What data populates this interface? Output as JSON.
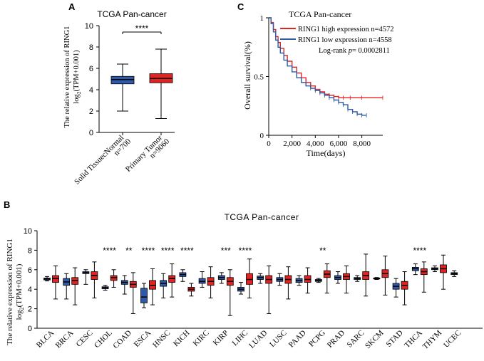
{
  "colors": {
    "normal": "#2e5aa8",
    "tumor": "#e02424",
    "high_line": "#e02424",
    "low_line": "#2e5aa8",
    "axis": "#000000"
  },
  "panels": {
    "a": {
      "letter": "A"
    },
    "b": {
      "letter": "B"
    },
    "c": {
      "letter": "C"
    }
  },
  "chart_data": [
    {
      "type": "box",
      "panel": "A",
      "title": "TCGA Pan-cancer",
      "ylabel_line1": "The relative expression of RING1",
      "ylabel_line2": "log",
      "ylabel_sub": "2",
      "ylabel_line2_rest": "(TPM+0.001)",
      "ylim": [
        0,
        10
      ],
      "yticks": [
        0,
        2,
        4,
        6,
        8,
        10
      ],
      "significance": "****",
      "groups": [
        {
          "name": "Solid TissuecNormal",
          "n": "n=700",
          "color": "normal",
          "min": 2.0,
          "q1": 4.55,
          "median": 4.95,
          "q3": 5.25,
          "max": 6.4
        },
        {
          "name": "Primary Tumor",
          "n": "n=9060",
          "color": "tumor",
          "min": 1.3,
          "q1": 4.65,
          "median": 5.05,
          "q3": 5.5,
          "max": 7.8
        }
      ]
    },
    {
      "type": "line",
      "panel": "C",
      "title": "TCGA Pan-cancer",
      "xlabel": "Time(days)",
      "ylabel": "Overall survival(%)",
      "xlim": [
        0,
        9800
      ],
      "ylim": [
        0,
        1
      ],
      "xticks": [
        0,
        2000,
        4000,
        6000,
        8000
      ],
      "xtick_labels": [
        "0",
        "2,000",
        "4,000",
        "6,000",
        "8,000"
      ],
      "yticks": [
        0,
        0.5,
        1
      ],
      "ytick_labels": [
        "0",
        "0.5",
        "1"
      ],
      "legend": "top-right",
      "logrank_label": "Log-rank",
      "logrank_p": "p",
      "logrank_value": "= 0.0002811",
      "series": [
        {
          "name": "RING1 high expression n=4572",
          "color": "high_line",
          "x": [
            0,
            200,
            400,
            600,
            800,
            1000,
            1300,
            1600,
            2000,
            2400,
            2800,
            3200,
            3600,
            4000,
            4400,
            4800,
            5200,
            5600,
            6000,
            6400,
            7000,
            8000,
            9800
          ],
          "y": [
            1.0,
            0.96,
            0.9,
            0.84,
            0.79,
            0.74,
            0.68,
            0.63,
            0.58,
            0.53,
            0.49,
            0.45,
            0.42,
            0.39,
            0.37,
            0.35,
            0.34,
            0.33,
            0.32,
            0.32,
            0.32,
            0.32,
            0.32
          ]
        },
        {
          "name": "RING1 low expression n=4558",
          "color": "low_line",
          "x": [
            0,
            200,
            400,
            600,
            800,
            1000,
            1300,
            1600,
            2000,
            2400,
            2800,
            3200,
            3600,
            4000,
            4400,
            4800,
            5200,
            5600,
            6000,
            6400,
            6800,
            7200,
            7600,
            8000,
            8400
          ],
          "y": [
            1.0,
            0.95,
            0.88,
            0.81,
            0.75,
            0.7,
            0.64,
            0.59,
            0.54,
            0.49,
            0.45,
            0.42,
            0.4,
            0.38,
            0.36,
            0.34,
            0.32,
            0.3,
            0.28,
            0.26,
            0.22,
            0.2,
            0.18,
            0.17,
            0.17
          ]
        }
      ]
    },
    {
      "type": "box",
      "panel": "B",
      "title": "TCGA Pan-cancer",
      "ylabel_line1": "The relative expression of RING1",
      "ylabel_line2": "log",
      "ylabel_sub": "2",
      "ylabel_line2_rest": "(TPM+0.001)",
      "ylim": [
        0,
        10
      ],
      "yticks": [
        0,
        2,
        4,
        6,
        8,
        10
      ],
      "categories": [
        {
          "name": "BLCA",
          "sig": "",
          "normal": [
            4.85,
            4.95,
            5.05,
            5.15,
            5.3
          ],
          "tumor": [
            3.0,
            4.7,
            5.1,
            5.4,
            6.4
          ]
        },
        {
          "name": "BRCA",
          "sig": "",
          "normal": [
            3.0,
            4.4,
            4.75,
            5.1,
            5.6
          ],
          "tumor": [
            2.4,
            4.5,
            4.9,
            5.2,
            6.2
          ]
        },
        {
          "name": "CESC",
          "sig": "",
          "normal": [
            4.5,
            5.6,
            5.7,
            5.8,
            6.0
          ],
          "tumor": [
            3.1,
            5.0,
            5.4,
            5.8,
            6.8
          ]
        },
        {
          "name": "CHOL",
          "sig": "****",
          "normal": [
            3.9,
            4.05,
            4.15,
            4.25,
            4.4
          ],
          "tumor": [
            4.2,
            4.9,
            5.2,
            5.4,
            6.0
          ]
        },
        {
          "name": "COAD",
          "sig": "**",
          "normal": [
            3.5,
            4.5,
            4.7,
            4.9,
            5.4
          ],
          "tumor": [
            1.5,
            4.2,
            4.5,
            4.8,
            5.7
          ]
        },
        {
          "name": "ESCA",
          "sig": "****",
          "normal": [
            2.1,
            2.6,
            3.2,
            4.1,
            4.6
          ],
          "tumor": [
            2.4,
            4.0,
            4.4,
            4.9,
            6.1
          ]
        },
        {
          "name": "HNSC",
          "sig": "****",
          "normal": [
            3.1,
            4.3,
            4.6,
            4.9,
            5.6
          ],
          "tumor": [
            3.2,
            4.7,
            5.1,
            5.4,
            6.6
          ]
        },
        {
          "name": "KICH",
          "sig": "****",
          "normal": [
            4.8,
            5.3,
            5.5,
            5.7,
            6.0
          ],
          "tumor": [
            3.3,
            3.8,
            4.0,
            4.2,
            4.6
          ]
        },
        {
          "name": "KIRC",
          "sig": "",
          "normal": [
            4.2,
            4.6,
            4.8,
            5.1,
            5.8
          ],
          "tumor": [
            3.1,
            4.4,
            4.8,
            5.2,
            6.3
          ]
        },
        {
          "name": "KIRP",
          "sig": "***",
          "normal": [
            4.6,
            5.0,
            5.2,
            5.4,
            5.7
          ],
          "tumor": [
            1.3,
            4.4,
            4.8,
            5.2,
            6.0
          ]
        },
        {
          "name": "LIHC",
          "sig": "****",
          "normal": [
            3.5,
            3.8,
            4.0,
            4.2,
            4.7
          ],
          "tumor": [
            3.1,
            4.5,
            5.0,
            5.6,
            7.1
          ]
        },
        {
          "name": "LUAD",
          "sig": "",
          "normal": [
            4.6,
            5.0,
            5.2,
            5.35,
            5.6
          ],
          "tumor": [
            1.5,
            4.6,
            5.0,
            5.4,
            6.4
          ]
        },
        {
          "name": "LUSC",
          "sig": "",
          "normal": [
            4.4,
            4.8,
            5.0,
            5.2,
            5.6
          ],
          "tumor": [
            3.0,
            4.6,
            5.0,
            5.4,
            6.3
          ]
        },
        {
          "name": "PAAD",
          "sig": "",
          "normal": [
            4.4,
            4.7,
            4.9,
            5.1,
            5.4
          ],
          "tumor": [
            3.6,
            4.7,
            5.0,
            5.4,
            6.2
          ]
        },
        {
          "name": "PCPG",
          "sig": "**",
          "normal": [
            4.7,
            4.8,
            4.9,
            5.0,
            5.1
          ],
          "tumor": [
            3.6,
            5.2,
            5.55,
            5.9,
            6.6
          ]
        },
        {
          "name": "PRAD",
          "sig": "",
          "normal": [
            4.6,
            5.0,
            5.2,
            5.4,
            5.8
          ],
          "tumor": [
            3.6,
            5.0,
            5.3,
            5.6,
            6.4
          ]
        },
        {
          "name": "SARC",
          "sig": "",
          "normal": [
            4.8,
            5.0,
            5.1,
            5.2,
            5.4
          ],
          "tumor": [
            3.3,
            5.0,
            5.4,
            5.8,
            7.6
          ]
        },
        {
          "name": "SKCM",
          "sig": "",
          "normal": [
            5.0,
            5.05,
            5.1,
            5.15,
            5.2
          ],
          "tumor": [
            3.4,
            5.2,
            5.6,
            6.0,
            7.4
          ]
        },
        {
          "name": "STAD",
          "sig": "",
          "normal": [
            3.2,
            4.0,
            4.3,
            4.6,
            5.1
          ],
          "tumor": [
            2.4,
            4.0,
            4.4,
            4.8,
            5.8
          ]
        },
        {
          "name": "THCA",
          "sig": "****",
          "normal": [
            5.5,
            5.9,
            6.1,
            6.25,
            6.6
          ],
          "tumor": [
            3.7,
            5.5,
            5.8,
            6.1,
            6.8
          ]
        },
        {
          "name": "THYM",
          "sig": "",
          "normal": [
            5.8,
            6.0,
            6.1,
            6.2,
            6.4
          ],
          "tumor": [
            4.0,
            5.7,
            6.1,
            6.5,
            7.5
          ]
        },
        {
          "name": "UCEC",
          "sig": "",
          "normal": [
            5.3,
            5.5,
            5.6,
            5.7,
            5.9
          ],
          "tumor": null
        }
      ]
    }
  ]
}
